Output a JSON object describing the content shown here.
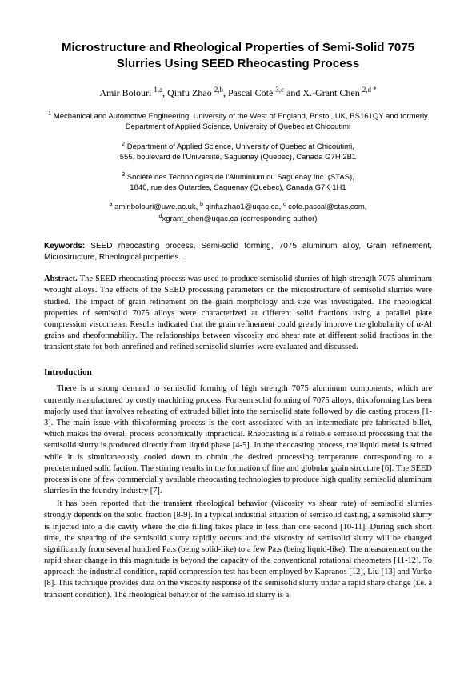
{
  "title": "Microstructure and Rheological Properties of Semi-Solid 7075 Slurries Using SEED Rheocasting Process",
  "authors_html": "Amir Bolouri <sup>1,a</sup>, Qinfu Zhao <sup>2,b</sup>, Pascal Côté <sup>3,c</sup> and X.-Grant Chen <sup>2,d *</sup>",
  "affil1": "<sup>1</sup> Mechanical and Automotive Engineering, University of the West of England, Bristol, UK, BS161QY and formerly Department of Applied Science, University of Quebec at Chicoutimi",
  "affil2": "<sup>2</sup> Department of Applied Science, University of Quebec at Chicoutimi,<br>555, boulevard de l'Université, Saguenay (Quebec), Canada G7H 2B1",
  "affil3": "<sup>3</sup> Société des Technologies de l'Aluminium du Saguenay Inc. (STAS),<br>1846, rue des Outardes, Saguenay (Quebec), Canada G7K 1H1",
  "emails": "<sup>a</sup> amir.bolouri@uwe.ac.uk, <sup>b</sup> qinfu.zhao1@uqac.ca, <sup>c</sup> cote.pascal@stas.com,<br><sup>d</sup>xgrant_chen@uqac.ca (corresponding author)",
  "keywords_label": "Keywords:",
  "keywords_text": " SEED rheocasting process, Semi-solid forming, 7075 aluminum alloy, Grain refinement, Microstructure, Rheological properties.",
  "abstract_label": "Abstract.",
  "abstract_text": " The SEED rheocasting process was used to produce semisolid slurries of high strength 7075 aluminum wrought alloys. The effects of the SEED processing parameters on the microstructure of semisolid slurries were studied. The impact of grain refinement on the grain morphology and size was investigated. The rheological properties of semisolid 7075 alloys were characterized at different solid fractions using a parallel plate compression viscometer. Results indicated that the grain refinement could greatly improve the globularity of α-Al grains and rheoformability. The relationships between viscosity and shear rate at different solid fractions in the transient state for both unrefined and refined semisolid slurries were evaluated and discussed.",
  "intro_head": "Introduction",
  "para1": "There is a strong demand to semisolid forming of high strength 7075 aluminum components, which are currently manufactured by costly machining process. For semisolid forming of 7075 alloys, thixoforming has been majorly used that involves reheating of extruded billet into the semisolid state followed by die casting process [1-3]. The main issue with thixoforming process is the cost associated with an intermediate pre-fabricated billet, which makes the overall process economically impractical. Rheocasting is a reliable semisolid processing that the semisolid slurry is produced directly from liquid phase [4-5]. In the rheocasting process, the liquid metal is stirred while it is simultaneously cooled down to obtain the desired processing temperature corresponding to a predetermined solid faction. The stirring results in the formation of fine and globular grain structure [6]. The SEED process is one of few commercially available rheocasting technologies to produce high quality semisolid aluminum slurries in the foundry industry [7].",
  "para2": "It has been reported that the transient rheological behavior (viscosity vs shear rate) of semisolid slurries strongly depends on the solid fraction [8-9]. In a typical industrial situation of semisolid casting, a semisolid slurry is injected into a die cavity where the die filling takes place in less than one second [10-11]. During such short time, the shearing of the semisolid slurry rapidly occurs and the viscosity of semisolid slurry will be changed significantly from several hundred Pa.s (being solid-like) to a few Pa.s (being liquid-like). The measurement on the rapid shear change in this magnitude is beyond the capacity of the conventional rotational rheometers [11-12]. To approach the industrial condition, rapid compression test has been employed by Kapranos [12], Liu [13] and Yurko [8]. This technique provides data on the viscosity response of the semisolid slurry under a rapid share change (i.e. a transient condition). The rheological behavior of the semisolid slurry is a"
}
